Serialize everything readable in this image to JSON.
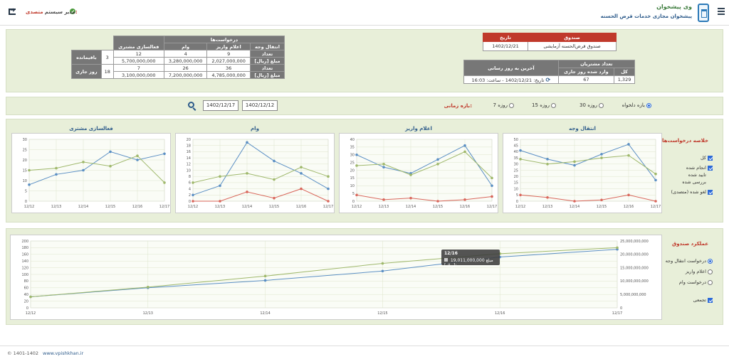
{
  "header": {
    "app_title": "وی پیشخوان",
    "app_subtitle": "پیشخوان مجازی خدمات قرض الحسنه",
    "user_key": "متصدی:",
    "user_value": "مدیر سیستم"
  },
  "requests_table": {
    "group_header": "درخواست‌ها",
    "col_activity": "فعالسازی مشتری",
    "col_loan": "وام",
    "col_deposit": "اعلام واریز",
    "col_transfer": "انتقال وجه",
    "row_remaining": "باقیمانده",
    "row_today": "روز جاری",
    "label_count": "تعداد",
    "label_amount": "مبلغ [ریال]",
    "remaining": {
      "activity": "3",
      "loan_count": "12",
      "deposit_count": "4",
      "transfer_count": "9",
      "loan_amount": "5,700,000,000",
      "deposit_amount": "3,280,000,000",
      "transfer_amount": "2,027,000,000"
    },
    "today": {
      "activity": "18",
      "loan_count": "7",
      "deposit_count": "26",
      "transfer_count": "36",
      "loan_amount": "3,100,000,000",
      "deposit_amount": "7,200,000,000",
      "transfer_amount": "4,785,000,000"
    }
  },
  "fund_table": {
    "col_fund": "صندوق",
    "col_date": "تاریخ",
    "fund_name": "صندوق قرض‌الحسنه آزمایشی",
    "date": "1402/12/21"
  },
  "customers_table": {
    "header": "تعداد مشتریان",
    "col_total": "کل",
    "col_today": "وارد شده روز جاری",
    "col_update": "آخرین به روز رسانی",
    "total": "1,329",
    "today": "67",
    "update_text": "تاریخ: 1402/12/21 - ساعت: 16:03"
  },
  "period": {
    "label": "بازه زمانی:",
    "options": [
      "7 روزه",
      "15 روزه",
      "30 روزه",
      "بازه دلخواه"
    ],
    "from": "1402/12/12",
    "to": "1402/12/17"
  },
  "summary": {
    "title": "خلاصه درخواست‌ها",
    "checks": [
      "کل",
      "انجام شده",
      "تایید شده",
      "بررسی شده",
      "لغو شده (متصدی)"
    ]
  },
  "performance": {
    "title": "عملکرد صندوق",
    "options": [
      "درخواست انتقال وجه",
      "اعلام واریز",
      "درخواست وام"
    ],
    "cumulative": "تجمعی",
    "tooltip_date": "12/16",
    "tooltip_label": "مبلغ [ریال]:",
    "tooltip_value": "19,011,000,000"
  },
  "footer": {
    "copyright": "© 1401-1402",
    "site": "www.vpishkhan.ir"
  },
  "colors": {
    "blue": "#5b8fc4",
    "green": "#9fb86b",
    "red": "#d9665b"
  },
  "chart_data": [
    {
      "type": "line",
      "title": "انتقال وجه",
      "x": [
        "12/12",
        "12/13",
        "12/14",
        "12/15",
        "12/16",
        "12/17"
      ],
      "ylim": [
        0,
        50
      ],
      "yticks": [
        0,
        5,
        10,
        15,
        20,
        25,
        30,
        35,
        40,
        45,
        50
      ],
      "series": [
        {
          "color": "blue",
          "values": [
            41,
            34,
            29,
            38,
            46,
            17
          ]
        },
        {
          "color": "green",
          "values": [
            34,
            30,
            32,
            35,
            37,
            22
          ]
        },
        {
          "color": "red",
          "values": [
            5,
            3,
            0,
            1,
            5,
            0
          ]
        }
      ]
    },
    {
      "type": "line",
      "title": "اعلام واریز",
      "x": [
        "12/12",
        "12/13",
        "12/14",
        "12/15",
        "12/16",
        "12/17"
      ],
      "ylim": [
        0,
        40
      ],
      "yticks": [
        0,
        5,
        10,
        15,
        20,
        25,
        30,
        35,
        40
      ],
      "series": [
        {
          "color": "blue",
          "values": [
            30,
            22,
            18,
            27,
            36,
            10
          ]
        },
        {
          "color": "green",
          "values": [
            23,
            24,
            17,
            24,
            32,
            15
          ]
        },
        {
          "color": "red",
          "values": [
            4,
            1,
            2,
            0,
            1,
            3
          ]
        }
      ]
    },
    {
      "type": "line",
      "title": "وام",
      "x": [
        "12/12",
        "12/13",
        "12/14",
        "12/15",
        "12/16",
        "12/17"
      ],
      "ylim": [
        0,
        20
      ],
      "yticks": [
        0,
        2,
        4,
        6,
        8,
        10,
        12,
        14,
        16,
        18,
        20
      ],
      "series": [
        {
          "color": "blue",
          "values": [
            2,
            5,
            19,
            13,
            9,
            4
          ]
        },
        {
          "color": "green",
          "values": [
            6,
            8,
            9,
            7,
            11,
            8
          ]
        },
        {
          "color": "red",
          "values": [
            0,
            0,
            3,
            1,
            4,
            0
          ]
        }
      ]
    },
    {
      "type": "line",
      "title": "فعالسازی مشتری",
      "x": [
        "12/12",
        "12/13",
        "12/14",
        "12/15",
        "12/16",
        "12/17"
      ],
      "ylim": [
        0,
        30
      ],
      "yticks": [
        0,
        5,
        10,
        15,
        20,
        25,
        30
      ],
      "series": [
        {
          "color": "blue",
          "values": [
            8,
            13,
            15,
            24,
            20,
            23
          ]
        },
        {
          "color": "green",
          "values": [
            15,
            16,
            19,
            17,
            22,
            9
          ]
        }
      ]
    },
    {
      "type": "line",
      "title": "",
      "x": [
        "12/12",
        "12/13",
        "12/14",
        "12/15",
        "12/16",
        "12/17"
      ],
      "ylim": [
        0,
        200
      ],
      "yticks": [
        0,
        20,
        40,
        60,
        80,
        100,
        120,
        140,
        160,
        180,
        200
      ],
      "y2lim": [
        0,
        25000000000
      ],
      "y2ticks": [
        "0",
        "5,000,000,000",
        "10,000,000,000",
        "15,000,000,000",
        "20,000,000,000",
        "25,000,000,000"
      ],
      "series": [
        {
          "color": "blue",
          "values": [
            33,
            60,
            82,
            110,
            152,
            175
          ]
        },
        {
          "color": "green",
          "values": [
            33,
            62,
            95,
            133,
            162,
            180
          ]
        }
      ]
    }
  ]
}
